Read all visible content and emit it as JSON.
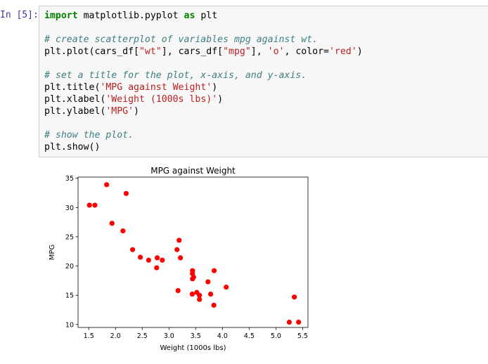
{
  "cell": {
    "prompt": "In [5]:",
    "code_lines": [
      [
        {
          "t": "import",
          "c": "kw"
        },
        {
          "t": " matplotlib.pyplot "
        },
        {
          "t": "as",
          "c": "kw"
        },
        {
          "t": " plt"
        }
      ],
      [],
      [
        {
          "t": "# create scatterplot of variables mpg against wt.",
          "c": "cm"
        }
      ],
      [
        {
          "t": "plt.plot(cars_df["
        },
        {
          "t": "\"wt\"",
          "c": "st"
        },
        {
          "t": "], cars_df["
        },
        {
          "t": "\"mpg\"",
          "c": "st"
        },
        {
          "t": "], "
        },
        {
          "t": "'o'",
          "c": "st"
        },
        {
          "t": ", color="
        },
        {
          "t": "'red'",
          "c": "st"
        },
        {
          "t": ")"
        }
      ],
      [],
      [
        {
          "t": "# set a title for the plot, x-axis, and y-axis.",
          "c": "cm"
        }
      ],
      [
        {
          "t": "plt.title("
        },
        {
          "t": "'MPG against Weight'",
          "c": "st"
        },
        {
          "t": ")"
        }
      ],
      [
        {
          "t": "plt.xlabel("
        },
        {
          "t": "'Weight (1000s lbs)'",
          "c": "st"
        },
        {
          "t": ")"
        }
      ],
      [
        {
          "t": "plt.ylabel("
        },
        {
          "t": "'MPG'",
          "c": "st"
        },
        {
          "t": ")"
        }
      ],
      [],
      [
        {
          "t": "# show the plot.",
          "c": "cm"
        }
      ],
      [
        {
          "t": "plt.show()"
        }
      ]
    ]
  },
  "colors": {
    "marker": "#ff0000",
    "axis": "#000000"
  },
  "chart_data": {
    "type": "scatter",
    "title": "MPG against Weight",
    "xlabel": "Weight (1000s lbs)",
    "ylabel": "MPG",
    "xlim": [
      1.3,
      5.6
    ],
    "ylim": [
      9.5,
      35.2
    ],
    "xticks": [
      1.5,
      2.0,
      2.5,
      3.0,
      3.5,
      4.0,
      4.5,
      5.0,
      5.5
    ],
    "xtick_labels": [
      "1.5",
      "2.0",
      "2.5",
      "3.0",
      "3.5",
      "4.0",
      "4.5",
      "5.0",
      "5.5"
    ],
    "yticks": [
      10,
      15,
      20,
      25,
      30,
      35
    ],
    "ytick_labels": [
      "10",
      "15",
      "20",
      "25",
      "30",
      "35"
    ],
    "grid": false,
    "series": [
      {
        "x": [
          2.62,
          2.875,
          2.32,
          3.215,
          3.44,
          3.46,
          3.57,
          3.19,
          3.15,
          3.44,
          3.44,
          4.07,
          3.73,
          3.78,
          5.25,
          5.424,
          5.345,
          2.2,
          1.615,
          1.835,
          2.465,
          3.52,
          3.435,
          3.84,
          3.845,
          1.935,
          2.14,
          1.513,
          3.17,
          2.77,
          3.57,
          2.78
        ],
        "y": [
          21.0,
          21.0,
          22.8,
          21.4,
          18.7,
          18.1,
          14.3,
          24.4,
          22.8,
          19.2,
          17.8,
          16.4,
          17.3,
          15.2,
          10.4,
          10.4,
          14.7,
          32.4,
          30.4,
          33.9,
          21.5,
          15.5,
          15.2,
          13.3,
          19.2,
          27.3,
          26.0,
          30.4,
          15.8,
          19.7,
          15.0,
          21.4
        ]
      }
    ]
  }
}
